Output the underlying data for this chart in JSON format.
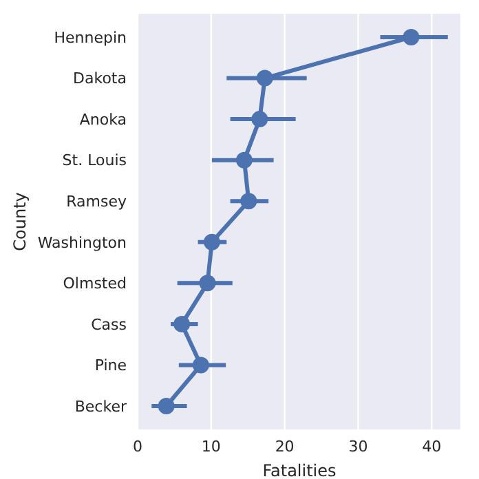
{
  "chart_data": {
    "type": "line",
    "xlabel": "Fatalities",
    "ylabel": "County",
    "orientation": "horizontal",
    "categories": [
      "Hennepin",
      "Dakota",
      "Anoka",
      "St. Louis",
      "Ramsey",
      "Washington",
      "Olmsted",
      "Cass",
      "Pine",
      "Becker"
    ],
    "values": [
      37.2,
      17.3,
      16.6,
      14.5,
      15.1,
      10.1,
      9.5,
      6.0,
      8.6,
      3.9
    ],
    "errors": [
      [
        33.0,
        42.2
      ],
      [
        12.1,
        23.0
      ],
      [
        12.6,
        21.5
      ],
      [
        10.1,
        18.5
      ],
      [
        12.6,
        17.8
      ],
      [
        8.2,
        12.1
      ],
      [
        5.4,
        12.9
      ],
      [
        4.5,
        8.2
      ],
      [
        5.6,
        12.0
      ],
      [
        1.9,
        6.7
      ]
    ],
    "color": "#4c72b0",
    "xlim": [
      0,
      44
    ],
    "xticks": [
      0,
      10,
      20,
      30,
      40
    ],
    "grid": "x",
    "marker": "circle",
    "line_style": "solid"
  }
}
